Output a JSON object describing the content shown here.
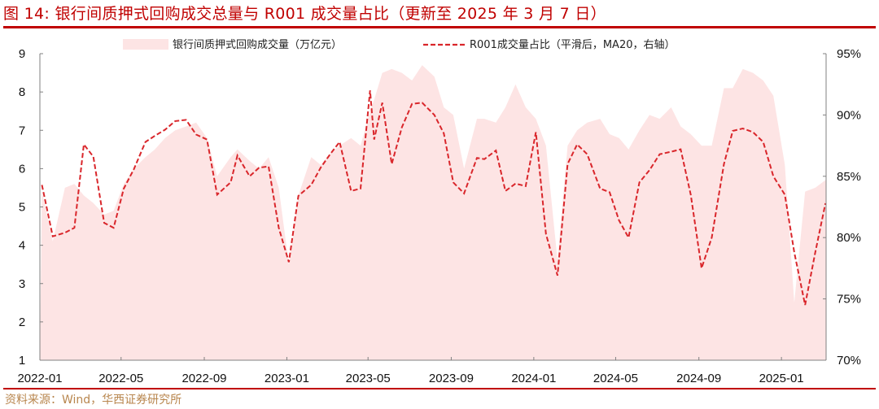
{
  "header": {
    "figure_label": "图 14:",
    "title": "银行间质押式回购成交总量与 R001 成交量占比（更新至 2025 年 3 月 7 日）"
  },
  "footer": {
    "source": "资料来源：Wind，华西证券研究所"
  },
  "colors": {
    "title": "#c00000",
    "rule": "#c00000",
    "area_fill": "#fde4e4",
    "line": "#d9262b",
    "source_text": "#b8864e"
  },
  "legend": {
    "area_label": "银行间质押式回购成交量（万亿元）",
    "line_label": "R001成交量占比（平滑后，MA20，右轴）"
  },
  "chart_data": {
    "type": "area+line",
    "title": "银行间质押式回购成交总量与 R001 成交量占比（更新至 2025 年 3 月 7 日）",
    "xlabel": "",
    "ylabel_left": "万亿元",
    "ylabel_right": "R001成交量占比",
    "left_ylim": [
      1,
      9
    ],
    "right_ylim": [
      70,
      95
    ],
    "left_ticks": [
      "1",
      "2",
      "3",
      "4",
      "5",
      "6",
      "7",
      "8",
      "9"
    ],
    "right_ticks": [
      "70%",
      "75%",
      "80%",
      "85%",
      "90%",
      "95%"
    ],
    "x_ticks": [
      "2022-01",
      "2022-05",
      "2022-09",
      "2023-01",
      "2023-05",
      "2023-09",
      "2024-01",
      "2024-05",
      "2024-09",
      "2025-01"
    ],
    "grid": false,
    "legend_position": "top",
    "x": [
      "2022-01-04",
      "2022-01-20",
      "2022-02-07",
      "2022-02-21",
      "2022-03-07",
      "2022-03-21",
      "2022-04-06",
      "2022-04-20",
      "2022-05-05",
      "2022-05-20",
      "2022-06-06",
      "2022-06-20",
      "2022-07-05",
      "2022-07-20",
      "2022-08-05",
      "2022-08-20",
      "2022-09-05",
      "2022-09-20",
      "2022-10-10",
      "2022-10-20",
      "2022-11-07",
      "2022-11-21",
      "2022-12-05",
      "2022-12-20",
      "2023-01-04",
      "2023-01-18",
      "2023-02-06",
      "2023-02-20",
      "2023-03-06",
      "2023-03-20",
      "2023-04-06",
      "2023-04-20",
      "2023-05-04",
      "2023-05-10",
      "2023-05-22",
      "2023-06-05",
      "2023-06-20",
      "2023-07-05",
      "2023-07-20",
      "2023-08-07",
      "2023-08-21",
      "2023-09-04",
      "2023-09-20",
      "2023-10-09",
      "2023-10-20",
      "2023-11-06",
      "2023-11-20",
      "2023-12-05",
      "2023-12-20",
      "2024-01-04",
      "2024-01-19",
      "2024-02-05",
      "2024-02-20",
      "2024-03-05",
      "2024-03-20",
      "2024-04-08",
      "2024-04-22",
      "2024-05-06",
      "2024-05-20",
      "2024-06-05",
      "2024-06-20",
      "2024-07-05",
      "2024-07-22",
      "2024-08-05",
      "2024-08-20",
      "2024-09-05",
      "2024-09-20",
      "2024-10-08",
      "2024-10-21",
      "2024-11-05",
      "2024-11-20",
      "2024-12-05",
      "2024-12-20",
      "2025-01-06",
      "2025-01-20",
      "2025-02-05",
      "2025-02-20",
      "2025-03-07"
    ],
    "series": [
      {
        "name": "银行间质押式回购成交量（万亿元）",
        "axis": "left",
        "type": "area",
        "values": [
          5.4,
          4.1,
          5.5,
          5.6,
          5.3,
          5.1,
          4.8,
          4.9,
          5.6,
          6.0,
          6.3,
          6.5,
          6.8,
          7.0,
          7.1,
          7.2,
          6.8,
          5.8,
          6.3,
          6.5,
          6.2,
          6.0,
          6.3,
          5.5,
          3.5,
          5.3,
          6.3,
          6.1,
          6.4,
          6.6,
          6.8,
          6.6,
          7.5,
          7.8,
          8.5,
          8.6,
          8.5,
          8.3,
          8.7,
          8.4,
          7.6,
          7.4,
          6.0,
          7.3,
          7.3,
          7.2,
          7.6,
          8.2,
          7.6,
          7.3,
          6.6,
          3.6,
          6.6,
          7.0,
          7.2,
          7.3,
          6.9,
          6.8,
          6.5,
          7.0,
          7.4,
          7.3,
          7.6,
          7.1,
          6.9,
          6.6,
          6.6,
          8.1,
          8.1,
          8.6,
          8.5,
          8.3,
          7.9,
          6.1,
          2.5,
          5.4,
          5.5,
          5.7
        ]
      },
      {
        "name": "R001成交量占比（平滑后，MA20，右轴）",
        "axis": "right",
        "type": "line",
        "values": [
          84.3,
          80.1,
          80.4,
          80.8,
          87.6,
          86.6,
          81.2,
          80.8,
          84.0,
          85.6,
          87.8,
          88.3,
          88.8,
          89.5,
          89.6,
          88.4,
          88.0,
          83.5,
          84.5,
          86.7,
          85.0,
          85.7,
          85.8,
          80.8,
          78.0,
          83.4,
          84.3,
          85.7,
          86.8,
          87.8,
          83.8,
          84.0,
          92.0,
          88.0,
          91.0,
          86.0,
          89.0,
          90.9,
          91.0,
          90.0,
          88.5,
          84.5,
          83.6,
          86.5,
          86.4,
          87.1,
          83.8,
          84.4,
          84.2,
          88.6,
          80.3,
          76.9,
          86.0,
          87.6,
          86.8,
          84.0,
          83.7,
          81.4,
          80.0,
          84.5,
          85.5,
          86.8,
          87.0,
          87.2,
          83.5,
          77.5,
          80.0,
          86.0,
          88.7,
          88.9,
          88.6,
          87.8,
          85.0,
          83.5,
          78.8,
          74.5,
          78.8,
          82.8
        ]
      }
    ]
  }
}
